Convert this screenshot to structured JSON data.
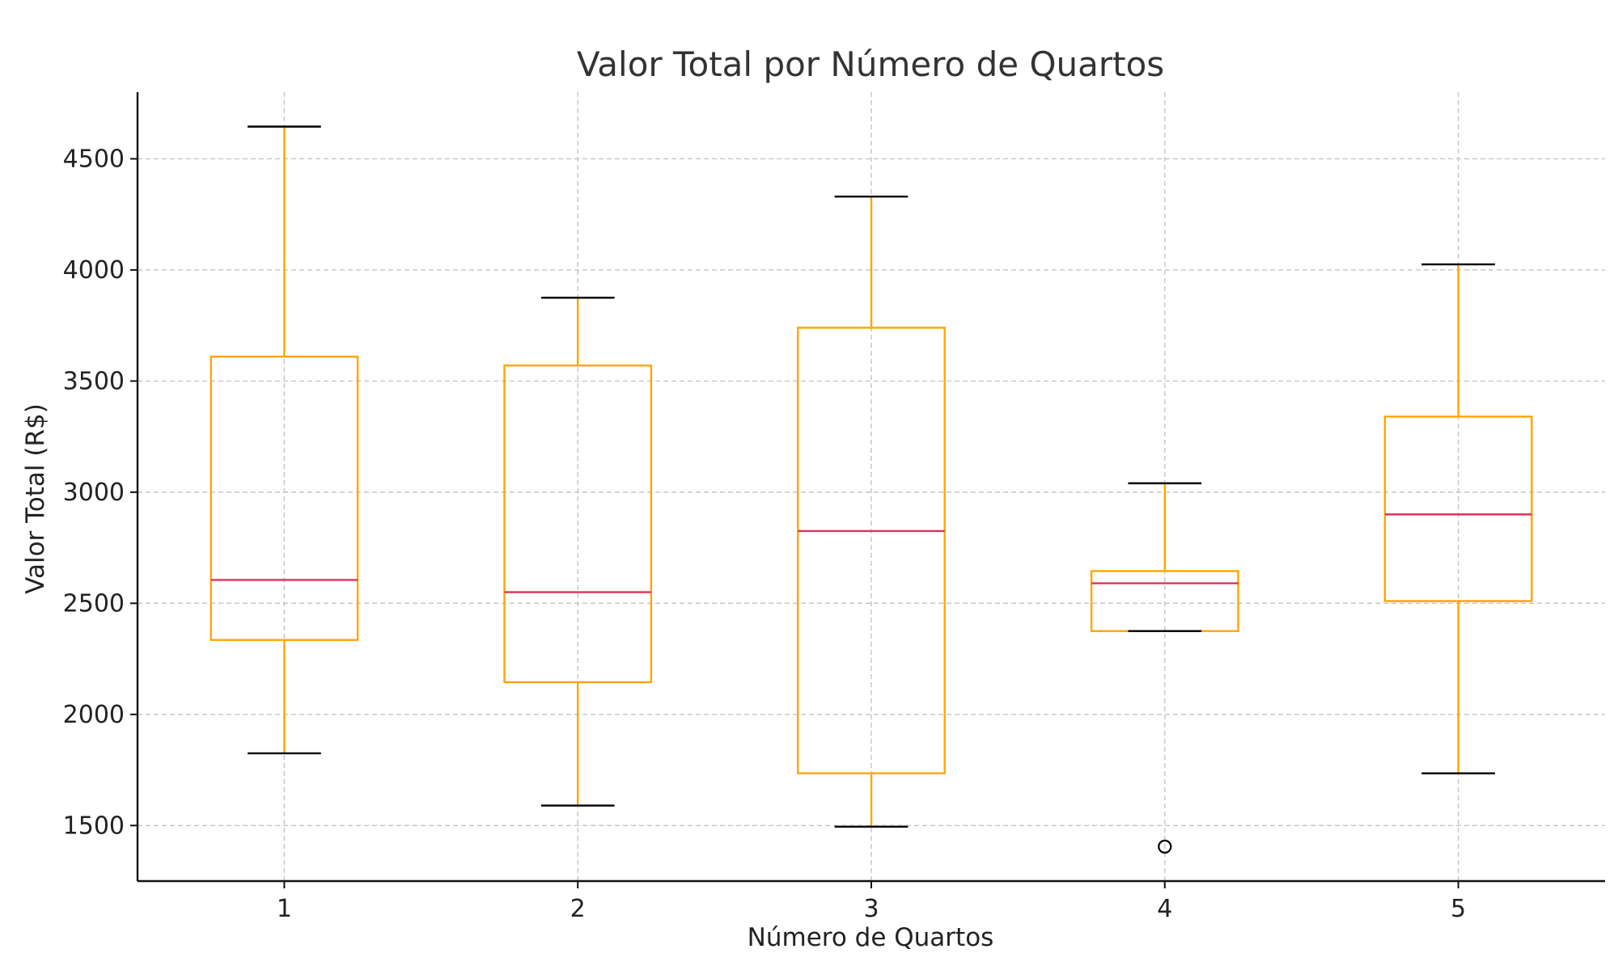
{
  "chart_data": {
    "type": "boxplot",
    "title": "Valor Total por Número de Quartos",
    "xlabel": "Número de Quartos",
    "ylabel": "Valor Total (R$)",
    "ylim": [
      1250,
      4800
    ],
    "yticks": [
      1500,
      2000,
      2500,
      3000,
      3500,
      4000,
      4500
    ],
    "grid": true,
    "colors": {
      "box": "#FFA500",
      "median": "#E0305A",
      "whisker_cap": "#000000",
      "outlier": "#000000"
    },
    "categories": [
      "1",
      "2",
      "3",
      "4",
      "5"
    ],
    "boxes": [
      {
        "label": "1",
        "whislo": 1825,
        "q1": 2335,
        "median": 2605,
        "q3": 3610,
        "whishi": 4645,
        "fliers": []
      },
      {
        "label": "2",
        "whislo": 1590,
        "q1": 2145,
        "median": 2550,
        "q3": 3570,
        "whishi": 3875,
        "fliers": []
      },
      {
        "label": "3",
        "whislo": 1495,
        "q1": 1735,
        "median": 2825,
        "q3": 3740,
        "whishi": 4330,
        "fliers": []
      },
      {
        "label": "4",
        "whislo": 2375,
        "q1": 2375,
        "median": 2590,
        "q3": 2645,
        "whishi": 3040,
        "fliers": [
          1405
        ]
      },
      {
        "label": "5",
        "whislo": 1735,
        "q1": 2510,
        "median": 2900,
        "q3": 3340,
        "whishi": 4025,
        "fliers": []
      }
    ]
  }
}
